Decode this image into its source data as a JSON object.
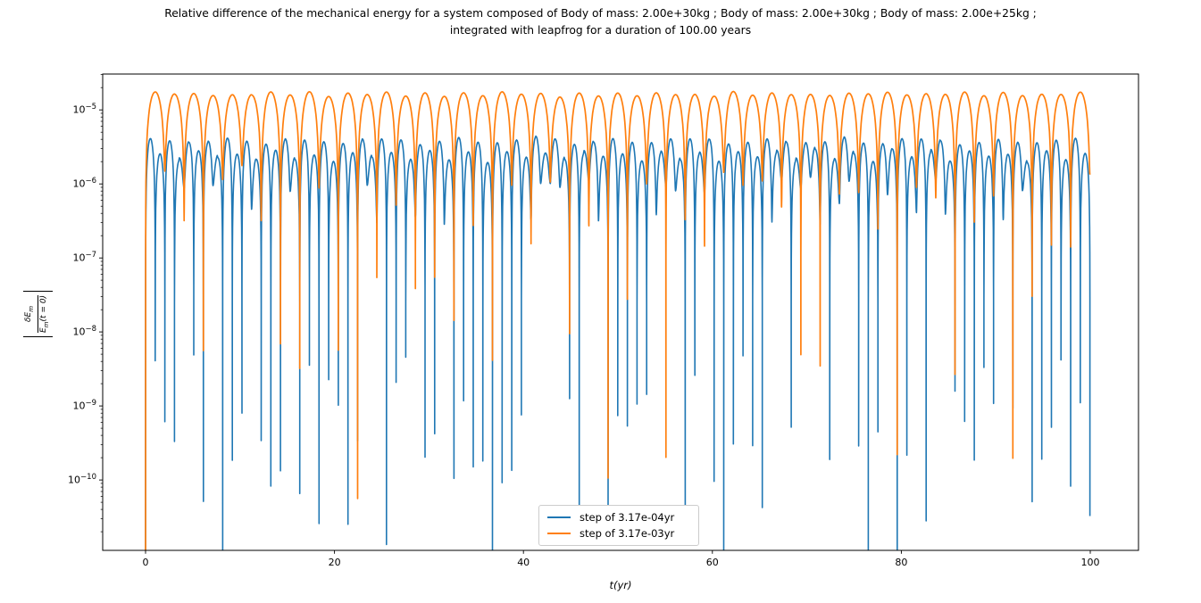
{
  "figure": {
    "title_line1": "Relative difference of the mechanical energy for a system composed of Body of mass: 2.00e+30kg ; Body of mass: 2.00e+30kg ; Body of mass: 2.00e+25kg ;",
    "title_line2": "integrated with leapfrog for a duration of 100.00 years"
  },
  "chart_data": {
    "type": "line",
    "title": "Relative difference of the mechanical energy for a system composed of Body of mass: 2.00e+30kg ; Body of mass: 2.00e+30kg ; Body of mass: 2.00e+25kg ; integrated with leapfrog for a duration of 100.00 years",
    "xlabel": "t(yr)",
    "ylabel": "|dE_m / E_m(t = 0)|",
    "ylabel_parts": {
      "num_main": "δE",
      "num_sub": "m",
      "den_main": "E",
      "den_sub": "m",
      "den_rest": "(t = 0)"
    },
    "x_scale": "linear",
    "y_scale": "log",
    "xlim": [
      -4.54,
      105.1
    ],
    "ylim": [
      1.12e-11,
      3.05e-05
    ],
    "x_ticks": [
      0,
      20,
      40,
      60,
      80,
      100
    ],
    "y_tick_exponents": [
      -5,
      -6,
      -7,
      -8,
      -9,
      -10
    ],
    "grid": false,
    "legend_position": "lower center",
    "system": {
      "bodies": [
        "Body of mass: 2.00e+30kg",
        "Body of mass: 2.00e+30kg",
        "Body of mass: 2.00e+25kg"
      ],
      "integrator": "leapfrog",
      "duration_years": 100.0
    },
    "series": [
      {
        "name": "step of 3.17e-04yr",
        "color": "#1f77b4",
        "step_yr": 0.000317,
        "behavior": "relative energy error oscillates each orbit: rounded arcs peaking near 4e-6 separated by narrow cusps plunging as deep as 2e-11; starts at 0 at t=0",
        "oscillation": {
          "period_yr": 1.02,
          "n_arcs": 98,
          "peak_base": 4.1e-06,
          "peak_pattern": [
            1.0,
            0.62,
            0.92,
            0.5,
            0.85,
            0.68,
            0.95,
            0.55
          ],
          "peak_jitter": 0.07,
          "min_tiers": [
            {
              "p": 0.3,
              "exp_range": [
                -6.6,
                -5.7
              ]
            },
            {
              "p": 0.64,
              "exp_range": [
                -10.6,
                -8.3
              ]
            },
            {
              "p": 0.06,
              "exp_range": [
                -11.3,
                -10.6
              ]
            }
          ],
          "seed": 11,
          "samples_per_arc": 26,
          "stroke_width": 1.6
        }
      },
      {
        "name": "step of 3.17e-03yr",
        "color": "#ff7f0e",
        "step_yr": 0.00317,
        "behavior": "larger timestep: smooth arcs peaking near 1.7e-5 with period ~2yr; cusps between arcs mostly bottom near 1e-6..1e-8, a few spikes to ~1e-10; starts at 0 at t=0",
        "oscillation": {
          "period_yr": 2.04,
          "n_arcs": 49,
          "peak_base": 1.72e-05,
          "peak_pattern": [
            1.0,
            0.93,
            0.99,
            0.9,
            0.96,
            0.92
          ],
          "peak_jitter": 0.04,
          "min_tiers": [
            {
              "p": 0.52,
              "exp_range": [
                -6.9,
                -5.75
              ]
            },
            {
              "p": 0.38,
              "exp_range": [
                -8.6,
                -7.2
              ]
            },
            {
              "p": 0.1,
              "exp_range": [
                -10.3,
                -9.3
              ]
            }
          ],
          "seed": 5,
          "samples_per_arc": 34,
          "stroke_width": 1.7
        }
      }
    ]
  }
}
